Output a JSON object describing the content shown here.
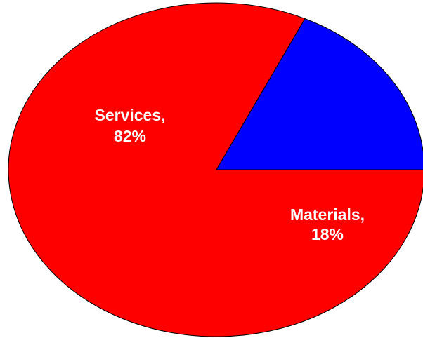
{
  "chart_data": {
    "type": "pie",
    "title": "",
    "legend": "none",
    "slices": [
      {
        "name": "Services",
        "value": 82,
        "label_name": "Services,",
        "label_value": "82%",
        "color": "#ff0000"
      },
      {
        "name": "Materials",
        "value": 18,
        "label_name": "Materials,",
        "label_value": "18%",
        "color": "#0000ff"
      }
    ],
    "start_angle_deg": 0,
    "direction": "counterclockwise",
    "outline_color": "#000000"
  }
}
